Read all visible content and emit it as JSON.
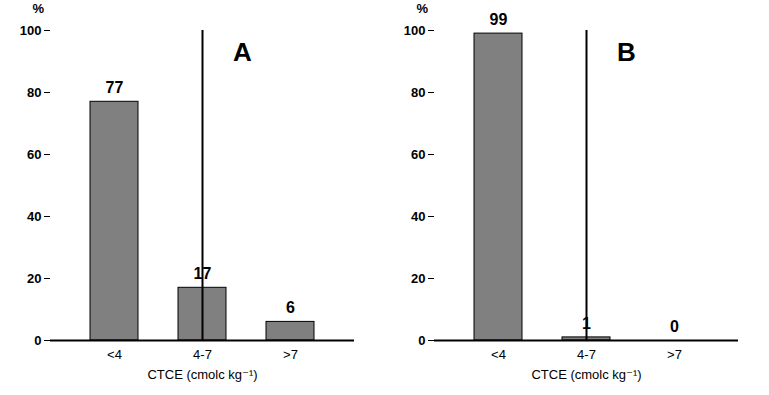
{
  "chart_data": [
    {
      "type": "bar",
      "title": "A",
      "categories": [
        "<4",
        "4-7",
        ">7"
      ],
      "values": [
        77,
        17,
        6
      ],
      "color": "#808080",
      "x_label": "CTCE (cmolc kg⁻¹)",
      "y_label": "%",
      "ylim": [
        0,
        100
      ],
      "yticks": [
        0,
        20,
        40,
        60,
        80,
        100
      ],
      "grid": false,
      "data_labels": true
    },
    {
      "type": "bar",
      "title": "B",
      "categories": [
        "<4",
        "4-7",
        ">7"
      ],
      "values": [
        99,
        1,
        0
      ],
      "color": "#808080",
      "x_label": "CTCE (cmolc kg⁻¹)",
      "y_label": "%",
      "ylim": [
        0,
        100
      ],
      "yticks": [
        0,
        20,
        40,
        60,
        80,
        100
      ],
      "grid": false,
      "data_labels": true
    }
  ]
}
